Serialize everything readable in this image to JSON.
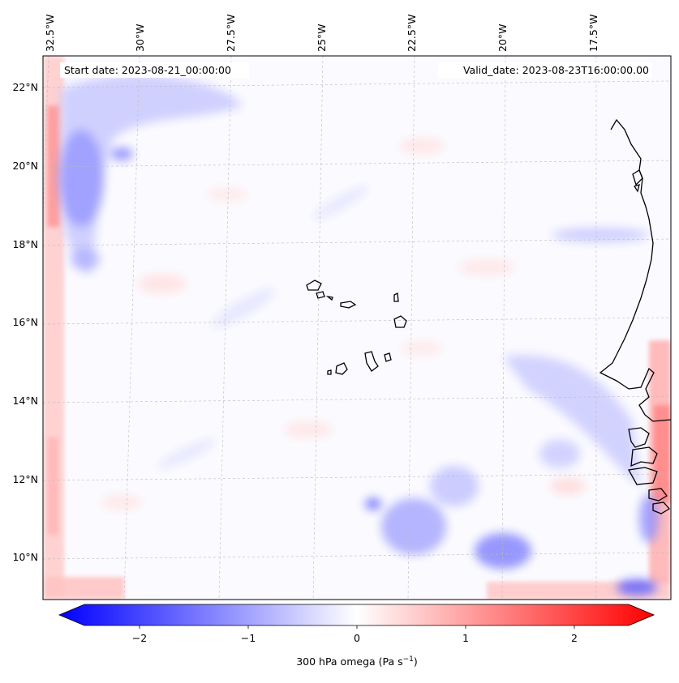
{
  "map": {
    "start_label": "Start date: 2023-08-21_00:00:00",
    "valid_label": "Valid_date: 2023-08-23T16:00:00.00",
    "lon_labels": [
      "32.5°W",
      "30°W",
      "27.5°W",
      "25°W",
      "22.5°W",
      "20°W",
      "17.5°W"
    ],
    "lat_labels": [
      "22°N",
      "20°N",
      "18°N",
      "16°N",
      "14°N",
      "12°N",
      "10°N"
    ],
    "land_color": "#000000"
  },
  "colorbar": {
    "ticks": [
      "−2",
      "−1",
      "0",
      "1",
      "2"
    ],
    "label_main": "300 hPa omega (Pa s",
    "label_exp": "−1",
    "label_tail": ")",
    "color_min": "#0000ff",
    "color_mid": "#ffffff",
    "color_max": "#ff0000"
  }
}
